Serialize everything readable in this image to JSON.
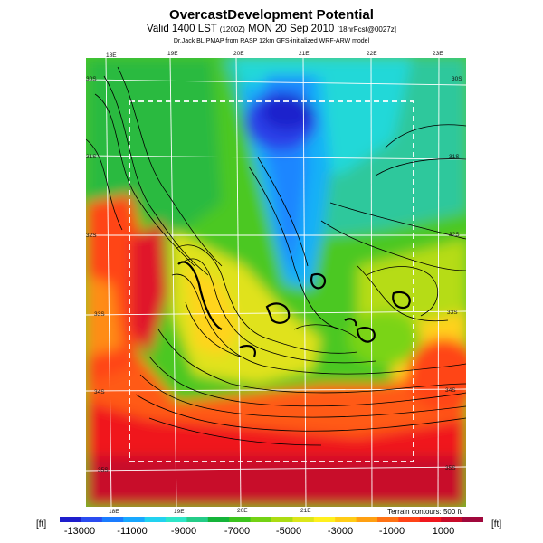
{
  "header": {
    "title": "OvercastDevelopment Potential",
    "valid_prefix": "Valid 1400 LST",
    "valid_time_small": "(1200Z)",
    "valid_date": "MON 20 Sep 2010",
    "forecast": "[18hrFcst@0027z]",
    "credit": "Dr.Jack BLIPMAP from RASP 12km GFS-initialized WRF-ARW model"
  },
  "map": {
    "lon_labels_top": [
      "18E",
      "19E",
      "20E",
      "21E",
      "22E",
      "23E"
    ],
    "lon_labels_bottom": [
      "18E",
      "19E",
      "20E",
      "21E"
    ],
    "lat_labels_left": [
      "30S",
      "31S",
      "32S",
      "33S",
      "34S",
      "35S"
    ],
    "lat_labels_right": [
      "30S",
      "31S",
      "32S",
      "33S",
      "34S",
      "35S"
    ],
    "terrain_note": "Terrain contours: 500 ft"
  },
  "legend": {
    "unit": "[ft]",
    "ticks": [
      "-13000",
      "-11000",
      "-9000",
      "-7000",
      "-5000",
      "-3000",
      "-1000",
      "1000"
    ],
    "colors": [
      "#1e1ecc",
      "#2a4cf0",
      "#1a7cff",
      "#18a8ff",
      "#22d2f0",
      "#2ee6c8",
      "#24cc88",
      "#14b43a",
      "#3cc41e",
      "#74d214",
      "#acdc12",
      "#dce61a",
      "#fff01e",
      "#ffcc16",
      "#ffa012",
      "#ff7214",
      "#ff4418",
      "#f0181e",
      "#c80c2a",
      "#a0083c"
    ]
  }
}
